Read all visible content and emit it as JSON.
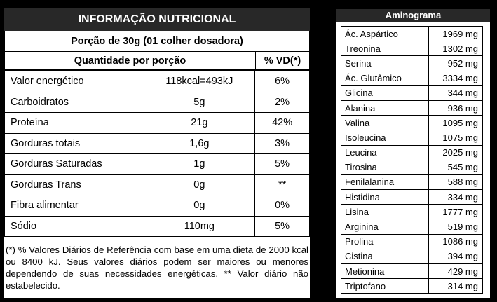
{
  "nutrition": {
    "title": "INFORMAÇÃO NUTRICIONAL",
    "portion": "Porção de 30g (01 colher dosadora)",
    "header_qty": "Quantidade por porção",
    "header_vd": "% VD(*)",
    "rows": [
      {
        "name": "Valor energético",
        "amount": "118kcal=493kJ",
        "vd": "6%"
      },
      {
        "name": "Carboidratos",
        "amount": "5g",
        "vd": "2%"
      },
      {
        "name": "Proteína",
        "amount": "21g",
        "vd": "42%"
      },
      {
        "name": "Gorduras totais",
        "amount": "1,6g",
        "vd": "3%"
      },
      {
        "name": "Gorduras Saturadas",
        "amount": "1g",
        "vd": "5%"
      },
      {
        "name": "Gorduras Trans",
        "amount": "0g",
        "vd": "**"
      },
      {
        "name": "Fibra alimentar",
        "amount": "0g",
        "vd": "0%"
      },
      {
        "name": "Sódio",
        "amount": "110mg",
        "vd": "5%"
      }
    ],
    "footnote": "(*) % Valores Diários de Referência com base em uma dieta de 2000 kcal ou 8400 kJ. Seus valores diários podem ser maiores ou menores dependendo de suas necessidades energéticas. ** Valor diário não estabelecido."
  },
  "aminogram": {
    "title": "Aminograma",
    "rows": [
      {
        "name": "Ác. Aspártico",
        "value": "1969 mg"
      },
      {
        "name": "Treonina",
        "value": "1302 mg"
      },
      {
        "name": "Serina",
        "value": "952 mg"
      },
      {
        "name": "Ác. Glutâmico",
        "value": "3334 mg"
      },
      {
        "name": "Glicina",
        "value": "344 mg"
      },
      {
        "name": "Alanina",
        "value": "936 mg"
      },
      {
        "name": "Valina",
        "value": "1095 mg"
      },
      {
        "name": "Isoleucina",
        "value": "1075 mg"
      },
      {
        "name": "Leucina",
        "value": "2025 mg"
      },
      {
        "name": "Tirosina",
        "value": "545 mg"
      },
      {
        "name": "Fenilalanina",
        "value": "588 mg"
      },
      {
        "name": "Histidina",
        "value": "334 mg"
      },
      {
        "name": "Lisina",
        "value": "1777 mg"
      },
      {
        "name": "Arginina",
        "value": "519 mg"
      },
      {
        "name": "Prolina",
        "value": "1086 mg"
      },
      {
        "name": "Cistina",
        "value": "394 mg"
      },
      {
        "name": "Metionina",
        "value": "429 mg"
      },
      {
        "name": "Triptofano",
        "value": "314 mg"
      }
    ]
  }
}
